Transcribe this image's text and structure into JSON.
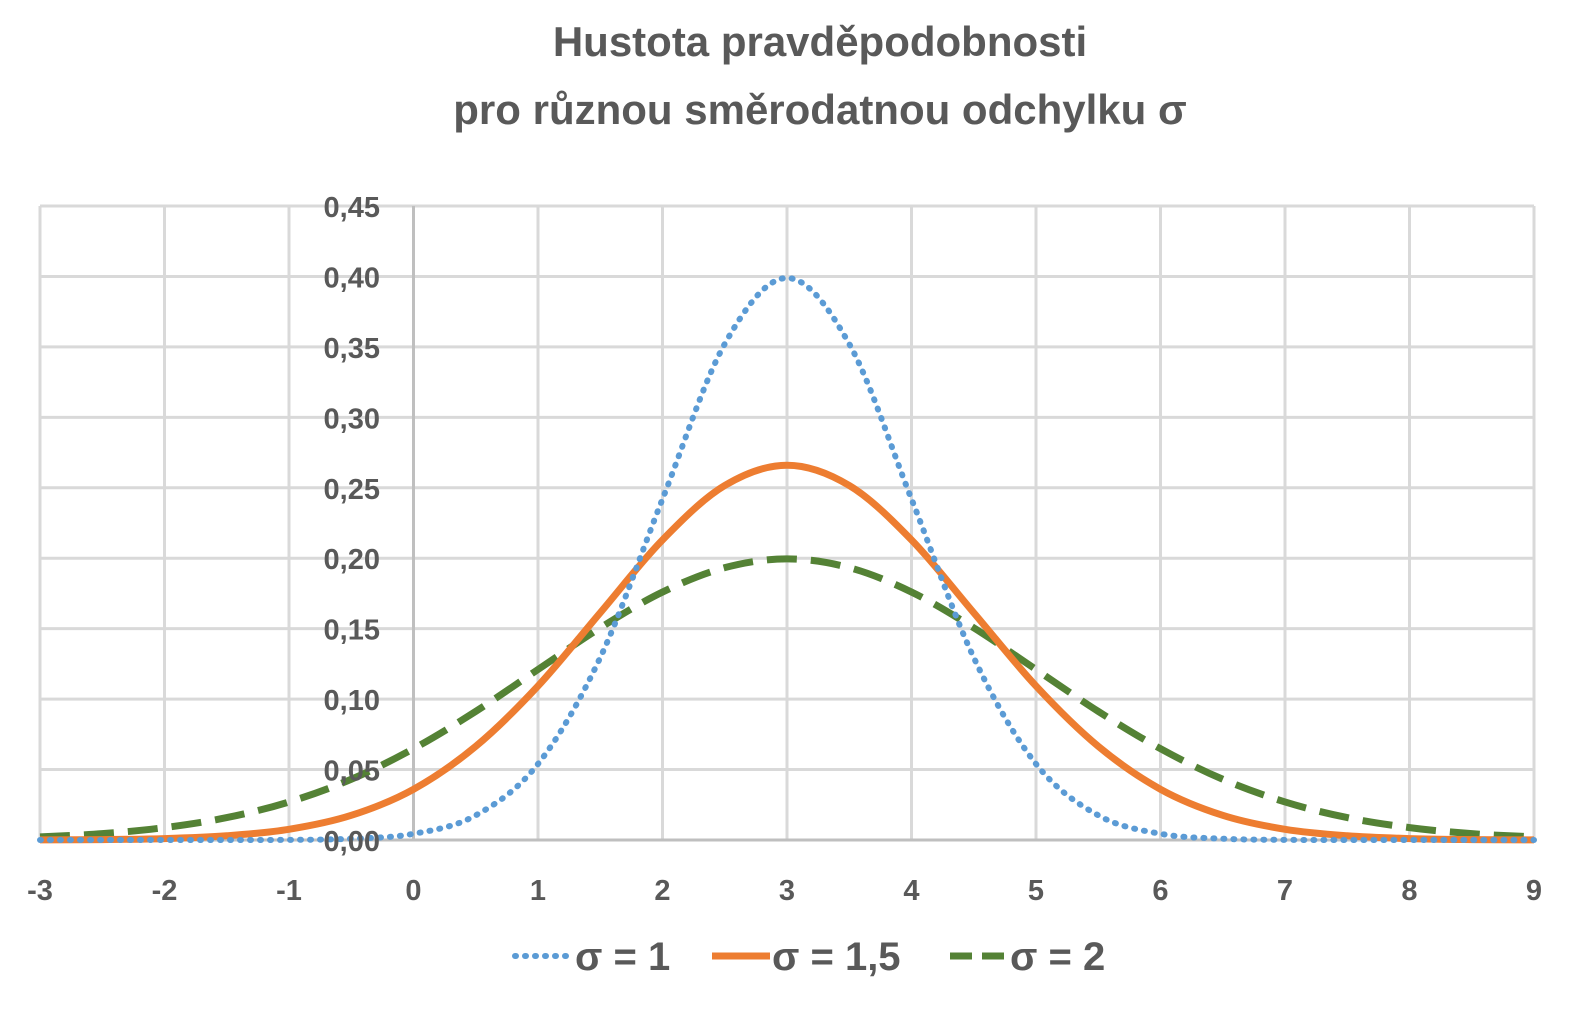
{
  "chart_data": {
    "type": "line",
    "title": [
      "Hustota pravděpodobnosti",
      "pro různou směrodatnou odchylku σ"
    ],
    "xlabel": "",
    "ylabel": "",
    "xlim": [
      -3,
      9
    ],
    "ylim": [
      0,
      0.45
    ],
    "x_ticks": [
      "-3",
      "-2",
      "-1",
      "0",
      "1",
      "2",
      "3",
      "4",
      "5",
      "6",
      "7",
      "8",
      "9"
    ],
    "y_ticks": [
      "0,00",
      "0,05",
      "0,10",
      "0,15",
      "0,20",
      "0,25",
      "0,30",
      "0,35",
      "0,40",
      "0,45"
    ],
    "grid": true,
    "legend_position": "bottom",
    "x": [
      -3,
      -2.5,
      -2,
      -1.5,
      -1,
      -0.5,
      0,
      0.5,
      1,
      1.5,
      2,
      2.5,
      3,
      3.5,
      4,
      4.5,
      5,
      5.5,
      6,
      6.5,
      7,
      7.5,
      8,
      8.5,
      9
    ],
    "series": [
      {
        "name": "σ = 1",
        "color": "#5b9bd5",
        "style": "dotted",
        "values": [
          0.0,
          0.0,
          0.0,
          0.0,
          0.0001,
          0.0009,
          0.0044,
          0.0175,
          0.054,
          0.1295,
          0.242,
          0.3521,
          0.3989,
          0.3521,
          0.242,
          0.1295,
          0.054,
          0.0175,
          0.0044,
          0.0009,
          0.0001,
          0.0,
          0.0,
          0.0,
          0.0
        ]
      },
      {
        "name": "σ = 1,5",
        "color": "#ed7d31",
        "style": "solid",
        "values": [
          0.0001,
          0.0003,
          0.001,
          0.003,
          0.0076,
          0.0175,
          0.036,
          0.0665,
          0.1093,
          0.1613,
          0.213,
          0.2516,
          0.266,
          0.2516,
          0.213,
          0.1613,
          0.1093,
          0.0665,
          0.036,
          0.0175,
          0.0076,
          0.003,
          0.001,
          0.0003,
          0.0001
        ]
      },
      {
        "name": "σ = 2",
        "color": "#548235",
        "style": "dashed",
        "values": [
          0.0022,
          0.0045,
          0.0088,
          0.0159,
          0.027,
          0.0431,
          0.0648,
          0.0913,
          0.121,
          0.1506,
          0.176,
          0.1933,
          0.1995,
          0.1933,
          0.176,
          0.1506,
          0.121,
          0.0913,
          0.0648,
          0.0431,
          0.027,
          0.0159,
          0.0088,
          0.0045,
          0.0022
        ]
      }
    ]
  }
}
